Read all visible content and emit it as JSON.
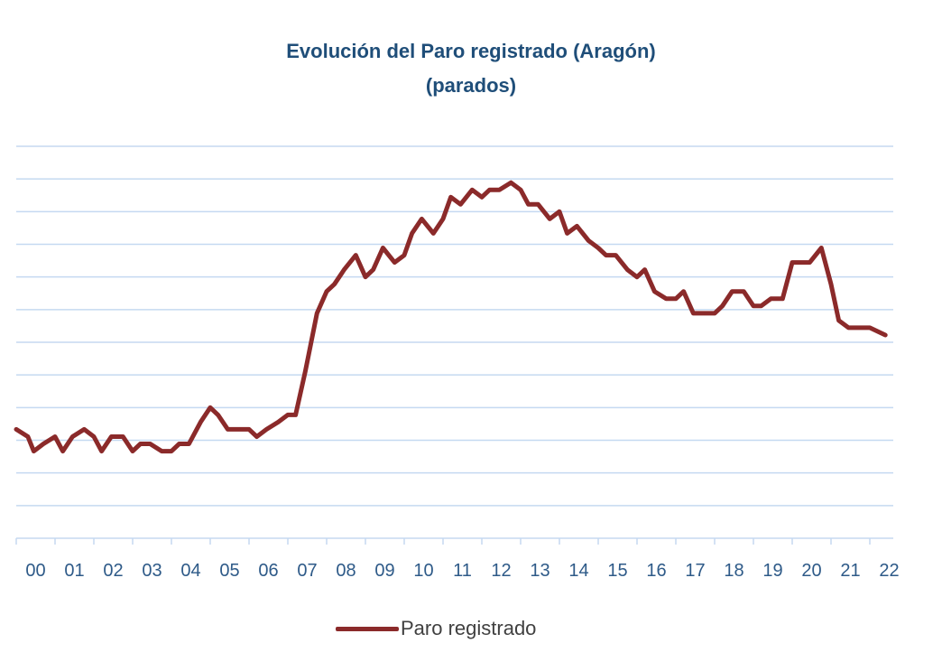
{
  "chart_data": {
    "type": "line",
    "title": "Evolución del Paro registrado (Aragón)",
    "subtitle": "(parados)",
    "xlabel": "",
    "ylabel": "",
    "x_tick_labels": [
      "00",
      "01",
      "02",
      "03",
      "04",
      "05",
      "06",
      "07",
      "08",
      "09",
      "10",
      "11",
      "12",
      "13",
      "14",
      "15",
      "16",
      "17",
      "18",
      "19",
      "20",
      "21",
      "22"
    ],
    "y_tick_labels": [],
    "grid": true,
    "legend_position": "bottom",
    "colors": {
      "series": "#8b2a2a",
      "grid": "#c5d9f1",
      "axis": "#c5d9f1",
      "text": "#2e5a88"
    },
    "series": [
      {
        "name": "Paro registrado",
        "x": [
          2000.0,
          2000.3,
          2000.45,
          2000.7,
          2001.0,
          2001.2,
          2001.45,
          2001.75,
          2002.0,
          2002.2,
          2002.45,
          2002.75,
          2003.0,
          2003.2,
          2003.45,
          2003.75,
          2004.0,
          2004.2,
          2004.45,
          2004.75,
          2005.0,
          2005.2,
          2005.45,
          2005.75,
          2006.0,
          2006.2,
          2006.45,
          2006.75,
          2007.0,
          2007.2,
          2007.45,
          2007.75,
          2008.0,
          2008.2,
          2008.45,
          2008.75,
          2009.0,
          2009.2,
          2009.45,
          2009.75,
          2010.0,
          2010.2,
          2010.45,
          2010.75,
          2011.0,
          2011.2,
          2011.45,
          2011.75,
          2012.0,
          2012.2,
          2012.45,
          2012.75,
          2013.0,
          2013.2,
          2013.45,
          2013.75,
          2014.0,
          2014.2,
          2014.45,
          2014.75,
          2015.0,
          2015.2,
          2015.45,
          2015.75,
          2016.0,
          2016.2,
          2016.45,
          2016.75,
          2017.0,
          2017.2,
          2017.45,
          2017.75,
          2018.0,
          2018.2,
          2018.45,
          2018.75,
          2019.0,
          2019.2,
          2019.45,
          2019.75,
          2020.0,
          2020.2,
          2020.45,
          2020.75,
          2021.0,
          2021.2,
          2021.45,
          2021.75,
          2022.0,
          2022.4
        ],
        "y": [
          30,
          29,
          27,
          28,
          29,
          27,
          29,
          30,
          29,
          27,
          29,
          29,
          27,
          28,
          28,
          27,
          27,
          28,
          28,
          31,
          33,
          32,
          30,
          30,
          30,
          29,
          30,
          31,
          32,
          32,
          38,
          46,
          49,
          50,
          52,
          54,
          51,
          52,
          55,
          53,
          54,
          57,
          59,
          57,
          59,
          62,
          61,
          63,
          62,
          63,
          63,
          64,
          63,
          61,
          61,
          59,
          60,
          57,
          58,
          56,
          55,
          54,
          54,
          52,
          51,
          52,
          49,
          48,
          48,
          49,
          46,
          46,
          46,
          47,
          49,
          49,
          47,
          47,
          48,
          48,
          53,
          53,
          53,
          55,
          50,
          45,
          44,
          44,
          44,
          43
        ],
        "values_unit": "relative (y-axis unlabeled in source)"
      }
    ]
  },
  "legend": {
    "label": "Paro registrado"
  }
}
